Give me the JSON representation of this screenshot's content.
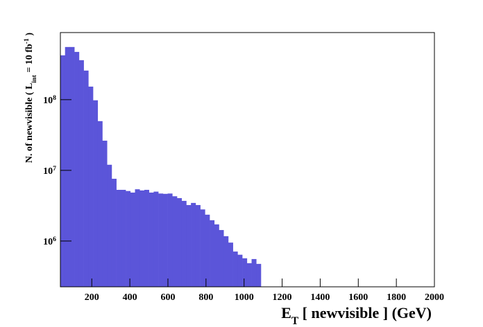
{
  "chart_data": {
    "type": "histogram",
    "xlabel": "E_T [ newvisible ] (GeV)",
    "ylabel": "N. of newvisible ( L_int = 10 fb^-1 )",
    "color": "#5b55d9",
    "log_y": true,
    "bins": [
      35,
      59.5,
      84,
      108.5,
      133,
      157.5,
      182,
      206.5,
      231,
      255.5,
      280,
      304.5,
      329,
      353.5,
      378,
      402.5,
      427,
      451.5,
      476,
      500.5,
      525,
      549.5,
      574,
      598.5,
      623,
      647.5,
      672,
      696.5,
      721,
      745.5,
      770,
      794.5,
      819,
      843.5,
      868,
      892.5,
      917,
      941.5,
      966,
      990.5,
      1015,
      1039.5,
      1064,
      1088.5
    ],
    "values": [
      424000000,
      556000000,
      556000000,
      474000000,
      362000000,
      258000000,
      153000000,
      98000000,
      49700000,
      26300000,
      12000000,
      7600000,
      5300000,
      5300000,
      5100000,
      4850000,
      5400000,
      5200000,
      5300000,
      4850000,
      5000000,
      4700000,
      4650000,
      4700000,
      4300000,
      4050000,
      3700000,
      3230000,
      3460000,
      3230000,
      2800000,
      2360000,
      1970000,
      1720000,
      1430000,
      1170000,
      950000,
      710000,
      640000,
      570000,
      486000,
      556000,
      475000
    ],
    "xlim": [
      35,
      2000
    ],
    "xticks": [
      200,
      400,
      600,
      800,
      1000,
      1200,
      1400,
      1600,
      1800,
      2000
    ],
    "ylim": [
      225000,
      890000000
    ],
    "yticks": [
      {
        "value": 1000000,
        "label": "10^6"
      },
      {
        "value": 10000000,
        "label": "10^7"
      },
      {
        "value": 100000000,
        "label": "10^8"
      }
    ]
  }
}
